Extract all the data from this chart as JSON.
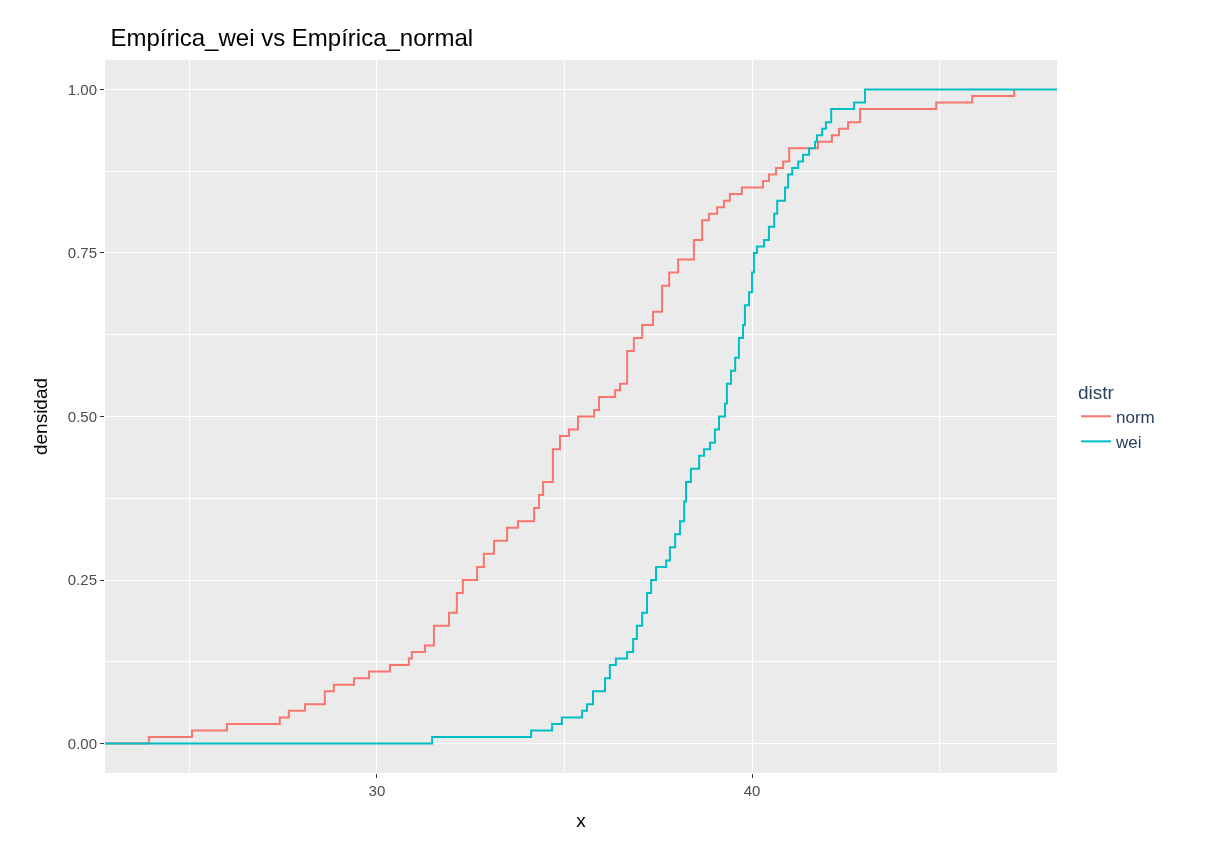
{
  "chart_data": {
    "type": "step",
    "title": "Empírica_wei vs Empírica_normal",
    "xlabel": "x",
    "ylabel": "densidad",
    "legend_title": "distr",
    "xlim": [
      22.75,
      48.13
    ],
    "xticks": [
      30,
      40
    ],
    "ylim": [
      -0.045,
      1.045
    ],
    "yticks": [
      {
        "value": 0,
        "label": "0.00"
      },
      {
        "value": 0.25,
        "label": "0.25"
      },
      {
        "value": 0.5,
        "label": "0.50"
      },
      {
        "value": 0.75,
        "label": "0.75"
      },
      {
        "value": 1,
        "label": "1.00"
      }
    ],
    "grid": true,
    "legend": "right",
    "marker": "none",
    "line_style": "solid",
    "series": [
      {
        "name": "norm",
        "color": "#f8766d",
        "x": [
          22.75,
          23.92,
          25.07,
          26.0,
          27.41,
          27.65,
          28.08,
          28.61,
          28.85,
          29.39,
          29.79,
          30.35,
          30.85,
          30.93,
          31.28,
          31.52,
          31.92,
          32.13,
          32.29,
          32.67,
          32.85,
          33.12,
          33.47,
          33.76,
          34.19,
          34.32,
          34.43,
          34.69,
          34.88,
          35.12,
          35.36,
          35.79,
          35.92,
          36.35,
          36.48,
          36.67,
          36.85,
          37.07,
          37.36,
          37.6,
          37.79,
          38.03,
          38.45,
          38.67,
          38.85,
          39.07,
          39.25,
          39.41,
          39.73,
          40.29,
          40.45,
          40.64,
          40.83,
          40.99,
          41.76,
          42.13,
          42.32,
          42.56,
          42.88,
          44.91,
          45.87,
          46.99
        ],
        "values": [
          0,
          0.01,
          0.02,
          0.03,
          0.04,
          0.05,
          0.06,
          0.08,
          0.09,
          0.1,
          0.11,
          0.12,
          0.13,
          0.14,
          0.15,
          0.18,
          0.2,
          0.23,
          0.25,
          0.27,
          0.29,
          0.31,
          0.33,
          0.34,
          0.36,
          0.38,
          0.4,
          0.45,
          0.47,
          0.48,
          0.5,
          0.51,
          0.53,
          0.54,
          0.55,
          0.6,
          0.62,
          0.64,
          0.66,
          0.7,
          0.72,
          0.74,
          0.77,
          0.8,
          0.81,
          0.82,
          0.83,
          0.84,
          0.85,
          0.86,
          0.87,
          0.88,
          0.89,
          0.91,
          0.92,
          0.93,
          0.94,
          0.95,
          0.97,
          0.98,
          0.99,
          1.0
        ]
      },
      {
        "name": "wei",
        "color": "#00bfc4",
        "x": [
          22.75,
          31.47,
          34.11,
          34.67,
          34.93,
          35.47,
          35.6,
          35.76,
          36.08,
          36.21,
          36.37,
          36.67,
          36.83,
          36.93,
          37.07,
          37.2,
          37.31,
          37.44,
          37.71,
          37.81,
          37.95,
          38.08,
          38.19,
          38.24,
          38.37,
          38.59,
          38.72,
          38.88,
          39.01,
          39.12,
          39.28,
          39.33,
          39.44,
          39.55,
          39.65,
          39.76,
          39.81,
          39.92,
          40.0,
          40.05,
          40.13,
          40.32,
          40.45,
          40.59,
          40.67,
          40.88,
          40.96,
          41.07,
          41.23,
          41.36,
          41.52,
          41.68,
          41.73,
          41.87,
          41.97,
          42.11,
          42.72,
          43.01,
          48.13
        ],
        "values": [
          0,
          0.01,
          0.02,
          0.03,
          0.04,
          0.05,
          0.06,
          0.08,
          0.1,
          0.12,
          0.13,
          0.14,
          0.16,
          0.18,
          0.2,
          0.23,
          0.25,
          0.27,
          0.28,
          0.3,
          0.32,
          0.34,
          0.37,
          0.4,
          0.42,
          0.44,
          0.45,
          0.46,
          0.48,
          0.5,
          0.52,
          0.55,
          0.57,
          0.59,
          0.62,
          0.64,
          0.67,
          0.69,
          0.72,
          0.75,
          0.76,
          0.77,
          0.79,
          0.81,
          0.83,
          0.85,
          0.87,
          0.88,
          0.89,
          0.9,
          0.91,
          0.92,
          0.93,
          0.94,
          0.95,
          0.97,
          0.98,
          1.0,
          1.0
        ]
      }
    ]
  }
}
